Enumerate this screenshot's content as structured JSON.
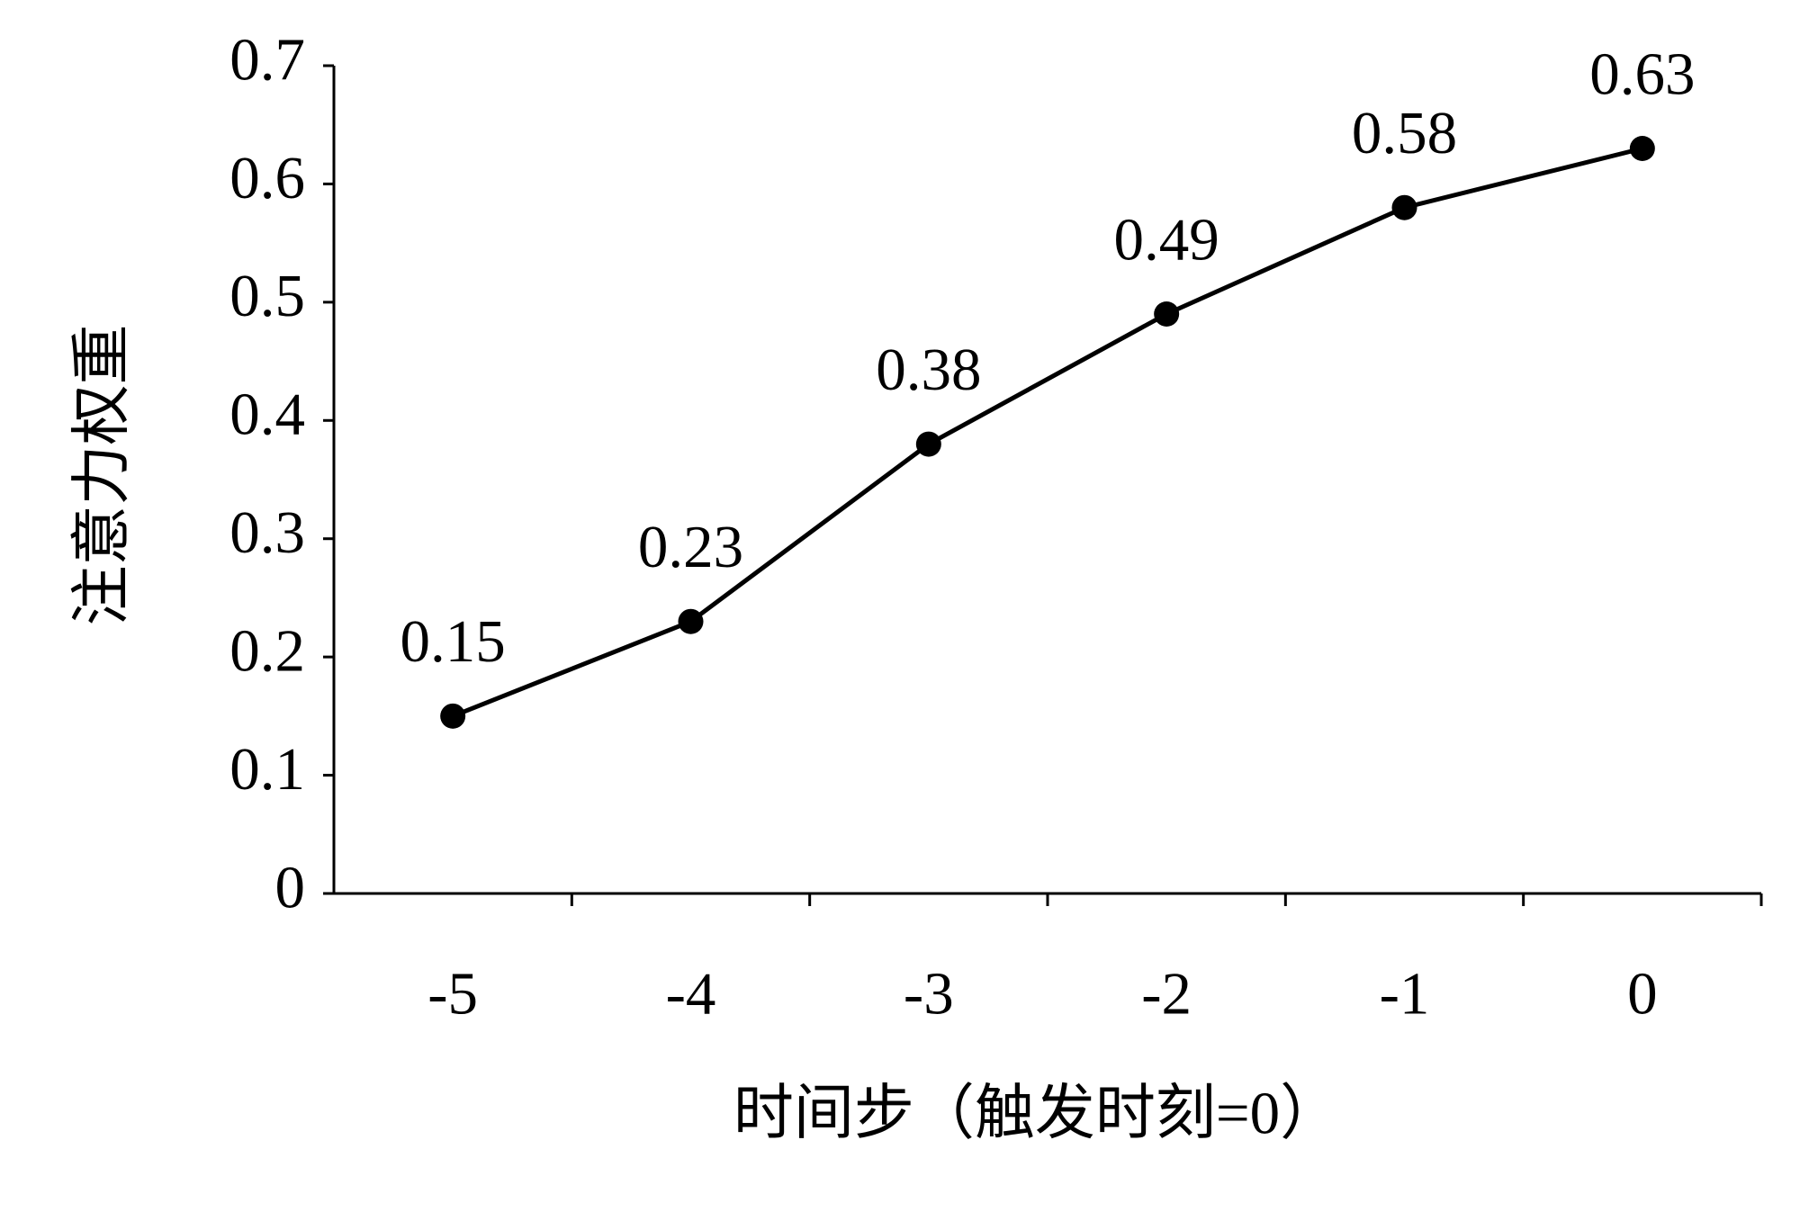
{
  "chart_data": {
    "type": "line",
    "y_label": "注意力权重",
    "x_label": "时间步（触发时刻=0）",
    "categories": [
      "-5",
      "-4",
      "-3",
      "-2",
      "-1",
      "0"
    ],
    "values": [
      0.15,
      0.23,
      0.38,
      0.49,
      0.58,
      0.63
    ],
    "color": "#000000",
    "data_labels": true,
    "ylim": [
      0,
      0.7
    ],
    "yticks": [
      0,
      0.1,
      0.2,
      0.3,
      0.4,
      0.5,
      0.6,
      0.7
    ],
    "grid": false
  }
}
